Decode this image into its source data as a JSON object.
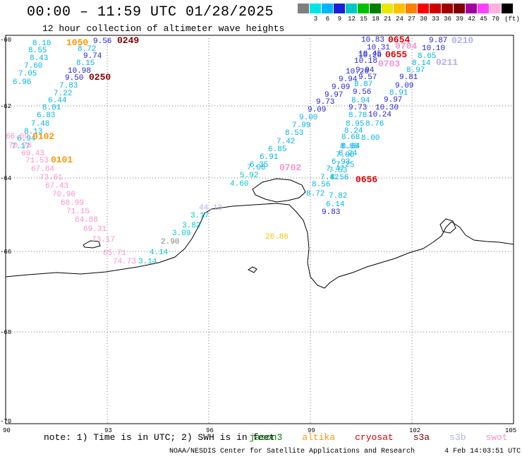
{
  "header": {
    "title": "00:00 – 11:59 UTC 01/28/2025",
    "subtitle": "12 hour collection of altimeter wave heights"
  },
  "colorbar": {
    "unit": "(ft)",
    "colors": [
      "#7f7f7f",
      "#00e5e5",
      "#00b4ff",
      "#1f1fd8",
      "#00c8c8",
      "#00c000",
      "#008000",
      "#e8e800",
      "#ffc000",
      "#ff8000",
      "#ff0000",
      "#d00000",
      "#a00000",
      "#800000",
      "#a000a0",
      "#ff40ff",
      "#ffb0e0",
      "#000000"
    ],
    "labels": [
      "3",
      "6",
      "9",
      "12",
      "15",
      "18",
      "21",
      "24",
      "27",
      "30",
      "33",
      "36",
      "39",
      "42",
      "45",
      "70"
    ]
  },
  "axes": {
    "lat_labels": [
      "-60",
      "-62",
      "-64",
      "-66",
      "-68",
      "-70"
    ],
    "lon_labels": [
      "90",
      "93",
      "96",
      "99",
      "102",
      "105"
    ]
  },
  "passes": [
    {
      "label": "1050",
      "color": "#ff9900"
    },
    {
      "label": "0249",
      "color": "#800000"
    },
    {
      "label": "0250",
      "color": "#800000"
    },
    {
      "label": "0102",
      "color": "#ff9900"
    },
    {
      "label": "0101",
      "color": "#ff9900"
    },
    {
      "label": "0654",
      "color": "#e00000"
    },
    {
      "label": "0704",
      "color": "#ff90d0"
    },
    {
      "label": "0655",
      "color": "#e00000"
    },
    {
      "label": "0703",
      "color": "#ff90d0"
    },
    {
      "label": "0210",
      "color": "#b0b0f0"
    },
    {
      "label": "0211",
      "color": "#b0b0f0"
    },
    {
      "label": "0702",
      "color": "#ff90d0"
    },
    {
      "label": "0656",
      "color": "#e00000"
    }
  ],
  "wave_heights": [
    {
      "v": "8.10",
      "c": "#00b4e8"
    },
    {
      "v": "8.55",
      "c": "#00b4e8"
    },
    {
      "v": "8.43",
      "c": "#00b4e8"
    },
    {
      "v": "7.60",
      "c": "#00b4e8"
    },
    {
      "v": "7.05",
      "c": "#00b4e8"
    },
    {
      "v": "6.96",
      "c": "#00b4e8"
    },
    {
      "v": "9.56",
      "c": "#1f1fd8"
    },
    {
      "v": "8.72",
      "c": "#00b4e8"
    },
    {
      "v": "9.74",
      "c": "#1f1fd8"
    },
    {
      "v": "8.15",
      "c": "#00b4e8"
    },
    {
      "v": "10.98",
      "c": "#1f1fd8"
    },
    {
      "v": "9.50",
      "c": "#1f1fd8"
    },
    {
      "v": "7.83",
      "c": "#00b4e8"
    },
    {
      "v": "7.22",
      "c": "#00b4e8"
    },
    {
      "v": "6.44",
      "c": "#00b4e8"
    },
    {
      "v": "8.01",
      "c": "#00b4e8"
    },
    {
      "v": "6.83",
      "c": "#00b4e8"
    },
    {
      "v": "7.48",
      "c": "#00b4e8"
    },
    {
      "v": "8.13",
      "c": "#00b4e8"
    },
    {
      "v": "6.94",
      "c": "#00b4e8"
    },
    {
      "v": "7.17",
      "c": "#00b4e8"
    },
    {
      "v": "66.09",
      "c": "#ff90d0"
    },
    {
      "v": "70.76",
      "c": "#ff90d0"
    },
    {
      "v": "69.43",
      "c": "#ff90d0"
    },
    {
      "v": "71.53",
      "c": "#ff90d0"
    },
    {
      "v": "67.84",
      "c": "#ff90d0"
    },
    {
      "v": "73.61",
      "c": "#ff90d0"
    },
    {
      "v": "67.43",
      "c": "#ff90d0"
    },
    {
      "v": "70.96",
      "c": "#ff90d0"
    },
    {
      "v": "68.99",
      "c": "#ff90d0"
    },
    {
      "v": "71.15",
      "c": "#ff90d0"
    },
    {
      "v": "64.88",
      "c": "#ff90d0"
    },
    {
      "v": "69.31",
      "c": "#ff90d0"
    },
    {
      "v": "73.17",
      "c": "#ff90d0"
    },
    {
      "v": "65.71",
      "c": "#ff90d0"
    },
    {
      "v": "74.73",
      "c": "#ff90d0"
    },
    {
      "v": "2.90",
      "c": "#7f7f7f"
    },
    {
      "v": "4.14",
      "c": "#00c8c8"
    },
    {
      "v": "3.14",
      "c": "#00c8c8"
    },
    {
      "v": "3.09",
      "c": "#00c8c8"
    },
    {
      "v": "3.82",
      "c": "#00c8c8"
    },
    {
      "v": "3.17",
      "c": "#00c8c8"
    },
    {
      "v": "44.13",
      "c": "#b0b0f0"
    },
    {
      "v": "26.86",
      "c": "#ffc000"
    },
    {
      "v": "4.60",
      "c": "#00c8c8"
    },
    {
      "v": "5.92",
      "c": "#00c8c8"
    },
    {
      "v": "6.35",
      "c": "#00b4e8"
    },
    {
      "v": "7.06",
      "c": "#00b4e8"
    },
    {
      "v": "6.91",
      "c": "#00b4e8"
    },
    {
      "v": "6.85",
      "c": "#00b4e8"
    },
    {
      "v": "7.42",
      "c": "#00b4e8"
    },
    {
      "v": "8.53",
      "c": "#00b4e8"
    },
    {
      "v": "7.99",
      "c": "#00b4e8"
    },
    {
      "v": "9.00",
      "c": "#00b4e8"
    },
    {
      "v": "9.09",
      "c": "#1f1fd8"
    },
    {
      "v": "9.73",
      "c": "#1f1fd8"
    },
    {
      "v": "9.97",
      "c": "#1f1fd8"
    },
    {
      "v": "9.09",
      "c": "#1f1fd8"
    },
    {
      "v": "9.94",
      "c": "#1f1fd8"
    },
    {
      "v": "10.26",
      "c": "#1f1fd8"
    },
    {
      "v": "10.83",
      "c": "#1f1fd8"
    },
    {
      "v": "10.31",
      "c": "#1f1fd8"
    },
    {
      "v": "10.26",
      "c": "#1f1fd8"
    },
    {
      "v": "10.45",
      "c": "#1f1fd8"
    },
    {
      "v": "10.18",
      "c": "#1f1fd8"
    },
    {
      "v": "9.94",
      "c": "#1f1fd8"
    },
    {
      "v": "9.57",
      "c": "#1f1fd8"
    },
    {
      "v": "8.87",
      "c": "#00b4e8"
    },
    {
      "v": "9.56",
      "c": "#1f1fd8"
    },
    {
      "v": "8.94",
      "c": "#00b4e8"
    },
    {
      "v": "9.73",
      "c": "#1f1fd8"
    },
    {
      "v": "10.30",
      "c": "#1f1fd8"
    },
    {
      "v": "8.78",
      "c": "#00b4e8"
    },
    {
      "v": "10.24",
      "c": "#1f1fd8"
    },
    {
      "v": "8.95",
      "c": "#00b4e8"
    },
    {
      "v": "8.76",
      "c": "#00b4e8"
    },
    {
      "v": "8.24",
      "c": "#00b4e8"
    },
    {
      "v": "8.00",
      "c": "#00b4e8"
    },
    {
      "v": "8.68",
      "c": "#00b4e8"
    },
    {
      "v": "8.64",
      "c": "#00b4e8"
    },
    {
      "v": "8.08",
      "c": "#00b4e8"
    },
    {
      "v": "7.96",
      "c": "#00b4e8"
    },
    {
      "v": "8.24",
      "c": "#00b4e8"
    },
    {
      "v": "6.93",
      "c": "#00b4e8"
    },
    {
      "v": "7.25",
      "c": "#00b4e8"
    },
    {
      "v": "7.47",
      "c": "#00b4e8"
    },
    {
      "v": "7.53",
      "c": "#00b4e8"
    },
    {
      "v": "7.42",
      "c": "#00b4e8"
    },
    {
      "v": "8.56",
      "c": "#00b4e8"
    },
    {
      "v": "8.56",
      "c": "#00b4e8"
    },
    {
      "v": "8.72",
      "c": "#00b4e8"
    },
    {
      "v": "7.82",
      "c": "#00b4e8"
    },
    {
      "v": "6.14",
      "c": "#00b4e8"
    },
    {
      "v": "9.83",
      "c": "#1f1fd8"
    },
    {
      "v": "9.87",
      "c": "#1f1fd8"
    },
    {
      "v": "10.10",
      "c": "#1f1fd8"
    },
    {
      "v": "8.65",
      "c": "#00b4e8"
    },
    {
      "v": "8.14",
      "c": "#00b4e8"
    },
    {
      "v": "8.97",
      "c": "#00b4e8"
    },
    {
      "v": "9.81",
      "c": "#1f1fd8"
    },
    {
      "v": "9.09",
      "c": "#1f1fd8"
    },
    {
      "v": "8.91",
      "c": "#00b4e8"
    },
    {
      "v": "9.97",
      "c": "#1f1fd8"
    },
    {
      "v": "9.74",
      "c": "#1f1fd8"
    },
    {
      "v": "9.89",
      "c": "#1f1fd8"
    }
  ],
  "note": {
    "prefix": "note: 1) Time is in UTC; 2) SWH is in feet",
    "satellites": [
      {
        "name": "jason3",
        "color": "#008000"
      },
      {
        "name": "altika",
        "color": "#ff9900"
      },
      {
        "name": "cryosat",
        "color": "#e00000"
      },
      {
        "name": "s3a",
        "color": "#800000"
      },
      {
        "name": "s3b",
        "color": "#b0b0f0"
      },
      {
        "name": "swot",
        "color": "#ff90d0"
      }
    ]
  },
  "footer": {
    "credit": "NOAA/NESDIS Center for Satellite Applications and Research",
    "timestamp": "4 Feb 14:03:51 UTC 2025"
  }
}
